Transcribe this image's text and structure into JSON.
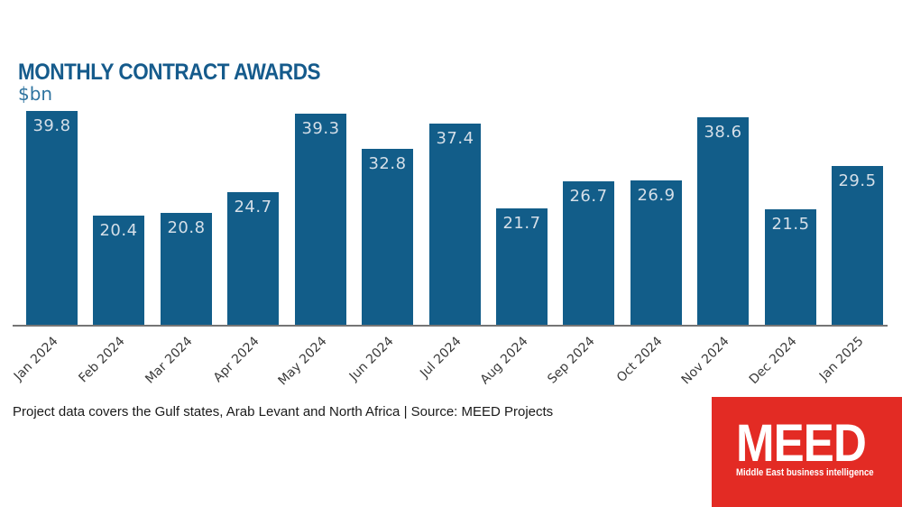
{
  "title": "MONTHLY CONTRACT AWARDS",
  "unit_label": "$bn",
  "footnote": "Project data covers the Gulf states, Arab Levant and North Africa | Source: MEED Projects",
  "logo": {
    "name": "MEED",
    "tagline": "Middle East business intelligence",
    "bg_color": "#e32b24",
    "text_color": "#ffffff"
  },
  "colors": {
    "bar": "#125d89",
    "title": "#155b8c",
    "unit": "#2f74a0",
    "value_label": "#d5dfe8",
    "axis_line": "#757575",
    "x_label": "#3a3a3a",
    "footnote": "#1a1a1a"
  },
  "chart_data": {
    "type": "bar",
    "categories": [
      "Jan 2024",
      "Feb 2024",
      "Mar 2024",
      "Apr 2024",
      "May 2024",
      "Jun 2024",
      "Jul 2024",
      "Aug 2024",
      "Sep 2024",
      "Oct 2024",
      "Nov 2024",
      "Dec 2024",
      "Jan 2025"
    ],
    "values": [
      39.8,
      20.4,
      20.8,
      24.7,
      39.3,
      32.8,
      37.4,
      21.7,
      26.7,
      26.9,
      38.6,
      21.5,
      29.5
    ],
    "title": "MONTHLY CONTRACT AWARDS",
    "xlabel": "",
    "ylabel": "$bn",
    "ylim": [
      0,
      40
    ],
    "value_labels": "inside-top",
    "grid": false,
    "legend": false
  }
}
